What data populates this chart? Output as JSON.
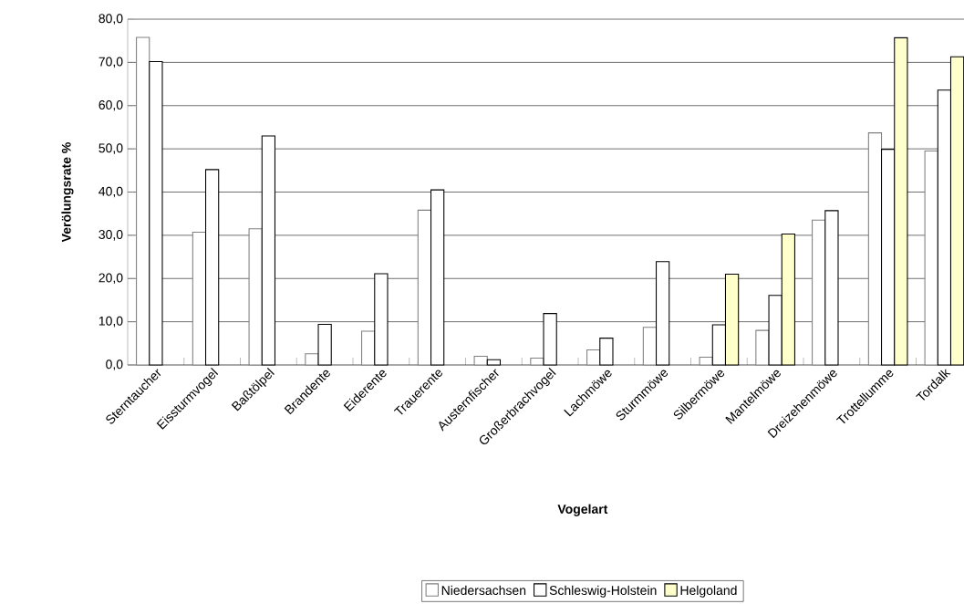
{
  "chart_data": {
    "type": "bar",
    "xlabel": "Vogelart",
    "ylabel": "Verölungsrate %",
    "categories": [
      "Sterntaucher",
      "Eissturmvogel",
      "Baßtölpel",
      "Brandente",
      "Eiderente",
      "Trauerente",
      "Austernfischer",
      "Großerbrachvogel",
      "Lachmöwe",
      "Sturmmöwe",
      "Silbermöwe",
      "Mantelmöwe",
      "Dreizehenmöwe",
      "Trottellumme",
      "Tordalk"
    ],
    "series": [
      {
        "name": "Niedersachsen",
        "color": "#ffffff",
        "values": [
          75.8,
          30.7,
          31.5,
          2.6,
          7.8,
          35.8,
          2.0,
          1.6,
          3.5,
          8.7,
          1.8,
          8.0,
          33.5,
          53.7,
          49.5
        ]
      },
      {
        "name": "Schleswig-Holstein",
        "color": "#ffffff",
        "values": [
          70.2,
          45.2,
          53.0,
          9.4,
          21.1,
          40.5,
          1.2,
          11.9,
          6.2,
          23.9,
          9.3,
          16.1,
          35.7,
          49.9,
          63.6
        ]
      },
      {
        "name": "Helgoland",
        "color": "#ffffcc",
        "values": [
          null,
          null,
          null,
          null,
          null,
          null,
          null,
          null,
          null,
          null,
          21.0,
          30.3,
          null,
          75.7,
          71.3
        ]
      }
    ],
    "ylim": [
      0,
      80
    ],
    "yticks": [
      {
        "value": 0,
        "label": "0,0"
      },
      {
        "value": 10,
        "label": "10,0"
      },
      {
        "value": 20,
        "label": "20,0"
      },
      {
        "value": 30,
        "label": "30,0"
      },
      {
        "value": 40,
        "label": "40,0"
      },
      {
        "value": 50,
        "label": "50,0"
      },
      {
        "value": 60,
        "label": "60,0"
      },
      {
        "value": 70,
        "label": "70,0"
      },
      {
        "value": 80,
        "label": "80,0"
      }
    ],
    "grid": "y",
    "legend": "bottom"
  }
}
